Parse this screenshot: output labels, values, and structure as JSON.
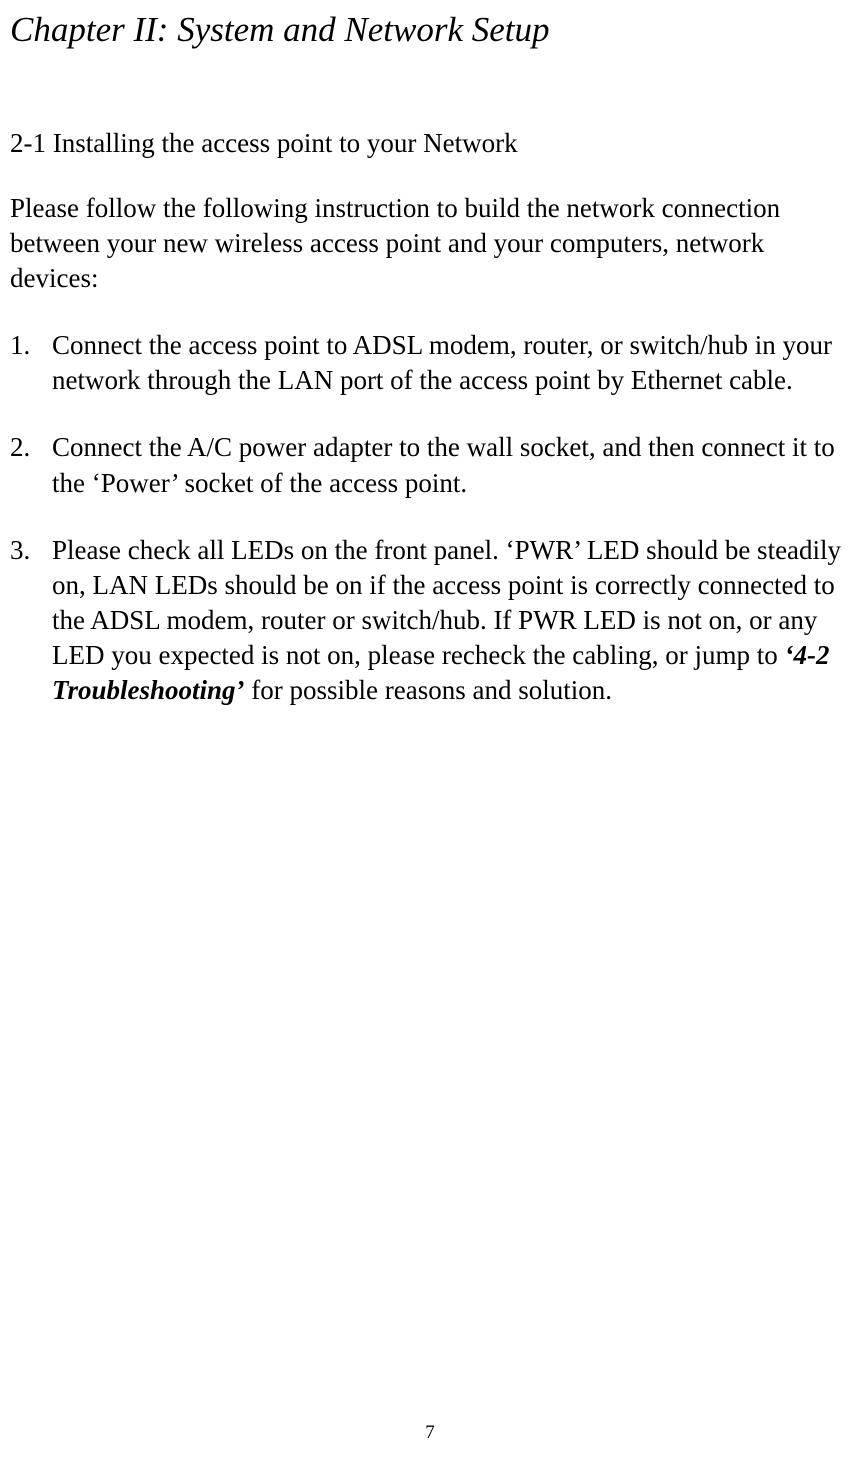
{
  "chapter_title": "Chapter II: System and Network Setup",
  "section_title": "2-1 Installing the access point to your Network",
  "intro": "Please follow the following instruction to build the network connection between your new wireless access point and your computers, network devices:",
  "items": [
    {
      "marker": "1.",
      "text": "Connect the access point to ADSL modem, router, or switch/hub in your network through the LAN port of the access point by Ethernet cable."
    },
    {
      "marker": "2.",
      "text": "Connect the A/C power adapter to the wall socket, and then connect it to the ‘Power’ socket of the access point."
    },
    {
      "marker": "3.",
      "text_before": "Please check all LEDs on the front panel. ‘PWR’ LED should be steadily on, LAN LEDs should be on if the access point is correctly connected to the ADSL modem, router or switch/hub. If PWR LED is not on, or any LED you expected is not on, please recheck the cabling, or jump to ",
      "emphasis": "‘4-2 Troubleshooting’",
      "text_after": " for possible reasons and solution."
    }
  ],
  "page_number": "7",
  "colors": {
    "background": "#ffffff",
    "text": "#000000"
  },
  "typography": {
    "base_font": "Times New Roman",
    "chapter_fontsize": 35,
    "body_fontsize": 27,
    "pagenum_fontsize": 19
  }
}
